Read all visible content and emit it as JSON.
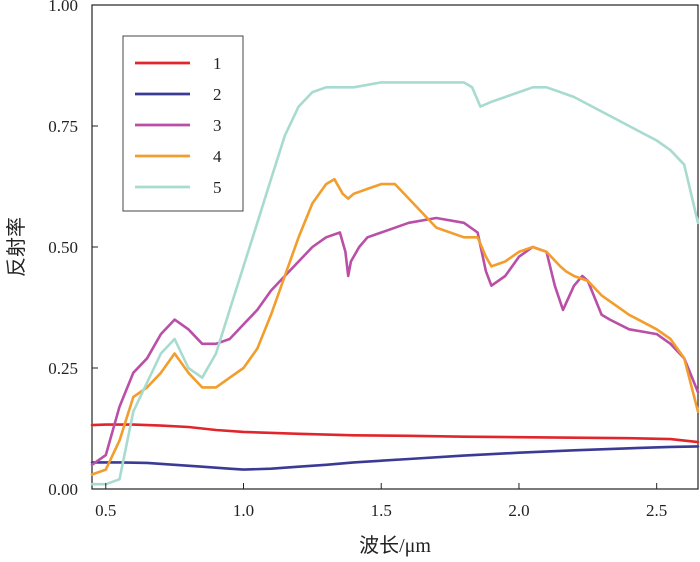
{
  "chart_data": {
    "type": "line",
    "title": "",
    "xlabel": "波长/μm",
    "ylabel": "反射率",
    "xlim": [
      0.45,
      2.65
    ],
    "ylim": [
      0.0,
      1.0
    ],
    "xticks": [
      0.5,
      1.0,
      1.5,
      2.0,
      2.5
    ],
    "xtick_labels": [
      "0.5",
      "1.0",
      "1.5",
      "2.0",
      "2.5"
    ],
    "yticks": [
      0.0,
      0.25,
      0.5,
      0.75,
      1.0
    ],
    "ytick_labels": [
      "0.00",
      "0.25",
      "0.50",
      "0.75",
      "1.00"
    ],
    "grid": false,
    "legend_position": "top-left",
    "series": [
      {
        "name": "1",
        "color": "#e0262b",
        "x": [
          0.45,
          0.5,
          0.6,
          0.7,
          0.8,
          0.9,
          1.0,
          1.2,
          1.4,
          1.6,
          1.8,
          2.0,
          2.2,
          2.4,
          2.55,
          2.65
        ],
        "y": [
          0.132,
          0.133,
          0.133,
          0.131,
          0.128,
          0.122,
          0.118,
          0.114,
          0.111,
          0.11,
          0.108,
          0.107,
          0.106,
          0.105,
          0.103,
          0.097
        ]
      },
      {
        "name": "2",
        "color": "#3b3b96",
        "x": [
          0.45,
          0.55,
          0.65,
          0.75,
          0.85,
          0.95,
          1.0,
          1.1,
          1.2,
          1.3,
          1.4,
          1.6,
          1.8,
          2.0,
          2.2,
          2.4,
          2.55,
          2.65
        ],
        "y": [
          0.055,
          0.055,
          0.054,
          0.05,
          0.046,
          0.042,
          0.04,
          0.042,
          0.046,
          0.05,
          0.055,
          0.062,
          0.069,
          0.075,
          0.08,
          0.084,
          0.087,
          0.088
        ]
      },
      {
        "name": "3",
        "color": "#b94fa7",
        "x": [
          0.45,
          0.5,
          0.55,
          0.6,
          0.65,
          0.7,
          0.75,
          0.8,
          0.85,
          0.9,
          0.95,
          1.0,
          1.05,
          1.1,
          1.15,
          1.2,
          1.25,
          1.3,
          1.35,
          1.37,
          1.38,
          1.39,
          1.42,
          1.45,
          1.5,
          1.6,
          1.7,
          1.8,
          1.85,
          1.88,
          1.9,
          1.95,
          2.0,
          2.05,
          2.1,
          2.13,
          2.16,
          2.2,
          2.23,
          2.25,
          2.3,
          2.33,
          2.4,
          2.5,
          2.55,
          2.6,
          2.65
        ],
        "y": [
          0.05,
          0.07,
          0.17,
          0.24,
          0.27,
          0.32,
          0.35,
          0.33,
          0.3,
          0.3,
          0.31,
          0.34,
          0.37,
          0.41,
          0.44,
          0.47,
          0.5,
          0.52,
          0.53,
          0.49,
          0.44,
          0.47,
          0.5,
          0.52,
          0.53,
          0.55,
          0.56,
          0.55,
          0.53,
          0.45,
          0.42,
          0.44,
          0.48,
          0.5,
          0.49,
          0.42,
          0.37,
          0.42,
          0.44,
          0.43,
          0.36,
          0.35,
          0.33,
          0.32,
          0.3,
          0.27,
          0.2
        ]
      },
      {
        "name": "4",
        "color": "#f29d2c",
        "x": [
          0.45,
          0.5,
          0.55,
          0.6,
          0.65,
          0.7,
          0.75,
          0.8,
          0.85,
          0.9,
          0.95,
          1.0,
          1.05,
          1.1,
          1.15,
          1.2,
          1.25,
          1.3,
          1.33,
          1.36,
          1.38,
          1.4,
          1.45,
          1.5,
          1.55,
          1.6,
          1.7,
          1.8,
          1.85,
          1.88,
          1.9,
          1.95,
          2.0,
          2.05,
          2.1,
          2.15,
          2.17,
          2.2,
          2.25,
          2.3,
          2.4,
          2.5,
          2.55,
          2.6,
          2.65
        ],
        "y": [
          0.03,
          0.04,
          0.1,
          0.19,
          0.21,
          0.24,
          0.28,
          0.24,
          0.21,
          0.21,
          0.23,
          0.25,
          0.29,
          0.36,
          0.44,
          0.52,
          0.59,
          0.63,
          0.64,
          0.61,
          0.6,
          0.61,
          0.62,
          0.63,
          0.63,
          0.6,
          0.54,
          0.52,
          0.52,
          0.48,
          0.46,
          0.47,
          0.49,
          0.5,
          0.49,
          0.46,
          0.45,
          0.44,
          0.43,
          0.4,
          0.36,
          0.33,
          0.31,
          0.27,
          0.16
        ]
      },
      {
        "name": "5",
        "color": "#a8dbd0",
        "x": [
          0.45,
          0.5,
          0.55,
          0.6,
          0.65,
          0.7,
          0.75,
          0.8,
          0.85,
          0.9,
          0.95,
          1.0,
          1.05,
          1.1,
          1.15,
          1.2,
          1.25,
          1.3,
          1.4,
          1.5,
          1.6,
          1.7,
          1.8,
          1.83,
          1.86,
          1.9,
          1.95,
          2.0,
          2.05,
          2.1,
          2.15,
          2.2,
          2.3,
          2.4,
          2.5,
          2.55,
          2.6,
          2.65
        ],
        "y": [
          0.01,
          0.01,
          0.02,
          0.16,
          0.22,
          0.28,
          0.31,
          0.25,
          0.23,
          0.28,
          0.37,
          0.46,
          0.55,
          0.64,
          0.73,
          0.79,
          0.82,
          0.83,
          0.83,
          0.84,
          0.84,
          0.84,
          0.84,
          0.83,
          0.79,
          0.8,
          0.81,
          0.82,
          0.83,
          0.83,
          0.82,
          0.81,
          0.78,
          0.75,
          0.72,
          0.7,
          0.67,
          0.55
        ]
      }
    ]
  }
}
